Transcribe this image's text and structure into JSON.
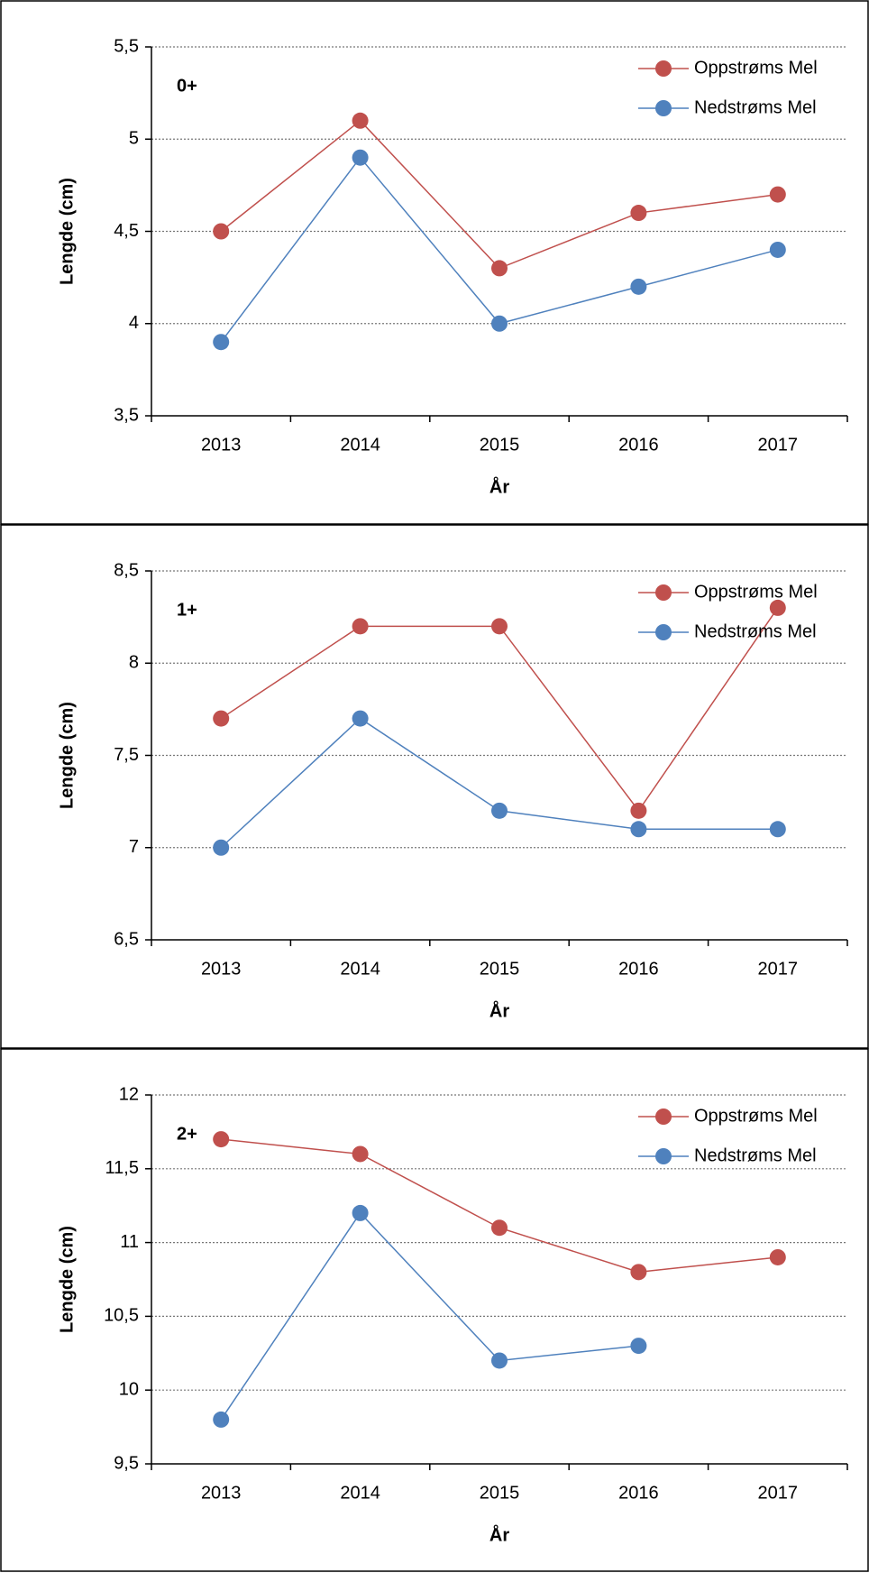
{
  "chart_data": [
    {
      "type": "line",
      "annotation": "0+",
      "ylabel": "Lengde (cm)",
      "xlabel": "År",
      "categories": [
        "2013",
        "2014",
        "2015",
        "2016",
        "2017"
      ],
      "series": [
        {
          "name": "Oppstrøms Mel",
          "color": "#c0504d",
          "values": [
            4.5,
            5.1,
            4.3,
            4.6,
            4.7
          ]
        },
        {
          "name": "Nedstrøms Mel",
          "color": "#4f81bd",
          "values": [
            3.9,
            4.9,
            4.0,
            4.2,
            4.4
          ]
        }
      ],
      "ylim": [
        3.5,
        5.5
      ],
      "yticks": [
        {
          "value": 3.5,
          "label": "3,5"
        },
        4,
        {
          "value": 4.5,
          "label": "4,5"
        },
        5,
        {
          "value": 5.5,
          "label": "5,5"
        }
      ],
      "grid": true,
      "legend": "upper right"
    },
    {
      "type": "line",
      "annotation": "1+",
      "ylabel": "Lengde (cm)",
      "xlabel": "År",
      "categories": [
        "2013",
        "2014",
        "2015",
        "2016",
        "2017"
      ],
      "series": [
        {
          "name": "Oppstrøms Mel",
          "color": "#c0504d",
          "values": [
            7.7,
            8.2,
            8.2,
            7.2,
            8.3
          ]
        },
        {
          "name": "Nedstrøms Mel",
          "color": "#4f81bd",
          "values": [
            7.0,
            7.7,
            7.2,
            7.1,
            7.1
          ]
        }
      ],
      "ylim": [
        6.5,
        8.5
      ],
      "yticks": [
        {
          "value": 6.5,
          "label": "6,5"
        },
        7,
        {
          "value": 7.5,
          "label": "7,5"
        },
        8,
        {
          "value": 8.5,
          "label": "8,5"
        }
      ],
      "grid": true,
      "legend": "upper right"
    },
    {
      "type": "line",
      "annotation": "2+",
      "ylabel": "Lengde (cm)",
      "xlabel": "År",
      "categories": [
        "2013",
        "2014",
        "2015",
        "2016",
        "2017"
      ],
      "series": [
        {
          "name": "Oppstrøms Mel",
          "color": "#c0504d",
          "values": [
            11.7,
            11.6,
            11.1,
            10.8,
            10.9
          ]
        },
        {
          "name": "Nedstrøms Mel",
          "color": "#4f81bd",
          "values": [
            9.8,
            11.2,
            10.2,
            10.3,
            null
          ]
        }
      ],
      "ylim": [
        9.5,
        12
      ],
      "yticks": [
        {
          "value": 9.5,
          "label": "9,5"
        },
        10,
        {
          "value": 10.5,
          "label": "10,5"
        },
        11,
        {
          "value": 11.5,
          "label": "11,5"
        },
        12
      ],
      "grid": true,
      "legend": "upper right"
    }
  ]
}
